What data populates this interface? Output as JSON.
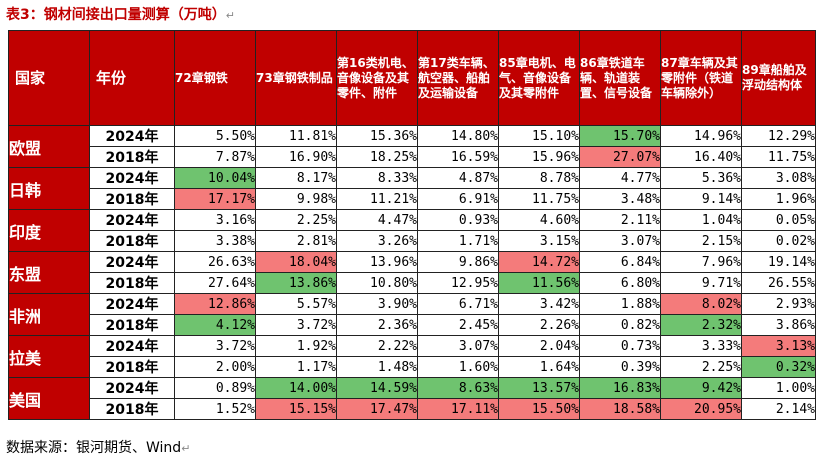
{
  "title": "表3：钢材间接出口量测算（万吨）",
  "colors": {
    "header_bg": "#c00000",
    "high": "#6fc36f",
    "low": "#f47b7b"
  },
  "table": {
    "headers": [
      "国家",
      "年份",
      "72章钢铁",
      "73章钢铁制品",
      "第16类机电、音像设备及其零件、附件",
      "第17类车辆、航空器、船舶及运输设备",
      "85章电机、电气、音像设备及其零附件",
      "86章铁道车辆、轨道装置、信号设备",
      "87章车辆及其零附件（铁道车辆除外）",
      "89章船舶及浮动结构体"
    ],
    "groups": [
      {
        "country": "欧盟",
        "rows": [
          {
            "year": "2024年",
            "cells": [
              {
                "v": "5.50%",
                "h": ""
              },
              {
                "v": "11.81%",
                "h": ""
              },
              {
                "v": "15.36%",
                "h": ""
              },
              {
                "v": "14.80%",
                "h": ""
              },
              {
                "v": "15.10%",
                "h": ""
              },
              {
                "v": "15.70%",
                "h": "green"
              },
              {
                "v": "14.96%",
                "h": ""
              },
              {
                "v": "12.29%",
                "h": ""
              }
            ]
          },
          {
            "year": "2018年",
            "cells": [
              {
                "v": "7.87%",
                "h": ""
              },
              {
                "v": "16.90%",
                "h": ""
              },
              {
                "v": "18.25%",
                "h": ""
              },
              {
                "v": "16.59%",
                "h": ""
              },
              {
                "v": "15.96%",
                "h": ""
              },
              {
                "v": "27.07%",
                "h": "red"
              },
              {
                "v": "16.40%",
                "h": ""
              },
              {
                "v": "11.75%",
                "h": ""
              }
            ]
          }
        ]
      },
      {
        "country": "日韩",
        "rows": [
          {
            "year": "2024年",
            "cells": [
              {
                "v": "10.04%",
                "h": "green"
              },
              {
                "v": "8.17%",
                "h": ""
              },
              {
                "v": "8.33%",
                "h": ""
              },
              {
                "v": "4.87%",
                "h": ""
              },
              {
                "v": "8.78%",
                "h": ""
              },
              {
                "v": "4.77%",
                "h": ""
              },
              {
                "v": "5.36%",
                "h": ""
              },
              {
                "v": "3.08%",
                "h": ""
              }
            ]
          },
          {
            "year": "2018年",
            "cells": [
              {
                "v": "17.17%",
                "h": "red"
              },
              {
                "v": "9.98%",
                "h": ""
              },
              {
                "v": "11.21%",
                "h": ""
              },
              {
                "v": "6.91%",
                "h": ""
              },
              {
                "v": "11.75%",
                "h": ""
              },
              {
                "v": "3.48%",
                "h": ""
              },
              {
                "v": "9.14%",
                "h": ""
              },
              {
                "v": "1.96%",
                "h": ""
              }
            ]
          }
        ]
      },
      {
        "country": "印度",
        "rows": [
          {
            "year": "2024年",
            "cells": [
              {
                "v": "3.16%",
                "h": ""
              },
              {
                "v": "2.25%",
                "h": ""
              },
              {
                "v": "4.47%",
                "h": ""
              },
              {
                "v": "0.93%",
                "h": ""
              },
              {
                "v": "4.60%",
                "h": ""
              },
              {
                "v": "2.11%",
                "h": ""
              },
              {
                "v": "1.04%",
                "h": ""
              },
              {
                "v": "0.05%",
                "h": ""
              }
            ]
          },
          {
            "year": "2018年",
            "cells": [
              {
                "v": "3.38%",
                "h": ""
              },
              {
                "v": "2.81%",
                "h": ""
              },
              {
                "v": "3.26%",
                "h": ""
              },
              {
                "v": "1.71%",
                "h": ""
              },
              {
                "v": "3.15%",
                "h": ""
              },
              {
                "v": "3.07%",
                "h": ""
              },
              {
                "v": "2.15%",
                "h": ""
              },
              {
                "v": "0.02%",
                "h": ""
              }
            ]
          }
        ]
      },
      {
        "country": "东盟",
        "rows": [
          {
            "year": "2024年",
            "cells": [
              {
                "v": "26.63%",
                "h": ""
              },
              {
                "v": "18.04%",
                "h": "red"
              },
              {
                "v": "13.96%",
                "h": ""
              },
              {
                "v": "9.86%",
                "h": ""
              },
              {
                "v": "14.72%",
                "h": "red"
              },
              {
                "v": "6.84%",
                "h": ""
              },
              {
                "v": "7.96%",
                "h": ""
              },
              {
                "v": "19.14%",
                "h": ""
              }
            ]
          },
          {
            "year": "2018年",
            "cells": [
              {
                "v": "27.64%",
                "h": ""
              },
              {
                "v": "13.86%",
                "h": "green"
              },
              {
                "v": "10.80%",
                "h": ""
              },
              {
                "v": "12.95%",
                "h": ""
              },
              {
                "v": "11.56%",
                "h": "green"
              },
              {
                "v": "6.80%",
                "h": ""
              },
              {
                "v": "9.71%",
                "h": ""
              },
              {
                "v": "26.55%",
                "h": ""
              }
            ]
          }
        ]
      },
      {
        "country": "非洲",
        "rows": [
          {
            "year": "2024年",
            "cells": [
              {
                "v": "12.86%",
                "h": "red"
              },
              {
                "v": "5.57%",
                "h": ""
              },
              {
                "v": "3.90%",
                "h": ""
              },
              {
                "v": "6.71%",
                "h": ""
              },
              {
                "v": "3.42%",
                "h": ""
              },
              {
                "v": "1.88%",
                "h": ""
              },
              {
                "v": "8.02%",
                "h": "red"
              },
              {
                "v": "2.93%",
                "h": ""
              }
            ]
          },
          {
            "year": "2018年",
            "cells": [
              {
                "v": "4.12%",
                "h": "green"
              },
              {
                "v": "3.72%",
                "h": ""
              },
              {
                "v": "2.36%",
                "h": ""
              },
              {
                "v": "2.45%",
                "h": ""
              },
              {
                "v": "2.26%",
                "h": ""
              },
              {
                "v": "0.82%",
                "h": ""
              },
              {
                "v": "2.32%",
                "h": "green"
              },
              {
                "v": "3.86%",
                "h": ""
              }
            ]
          }
        ]
      },
      {
        "country": "拉美",
        "rows": [
          {
            "year": "2024年",
            "cells": [
              {
                "v": "3.72%",
                "h": ""
              },
              {
                "v": "1.92%",
                "h": ""
              },
              {
                "v": "2.22%",
                "h": ""
              },
              {
                "v": "3.07%",
                "h": ""
              },
              {
                "v": "2.04%",
                "h": ""
              },
              {
                "v": "0.73%",
                "h": ""
              },
              {
                "v": "3.33%",
                "h": ""
              },
              {
                "v": "3.13%",
                "h": "red"
              }
            ]
          },
          {
            "year": "2018年",
            "cells": [
              {
                "v": "2.00%",
                "h": ""
              },
              {
                "v": "1.17%",
                "h": ""
              },
              {
                "v": "1.48%",
                "h": ""
              },
              {
                "v": "1.60%",
                "h": ""
              },
              {
                "v": "1.64%",
                "h": ""
              },
              {
                "v": "0.39%",
                "h": ""
              },
              {
                "v": "2.25%",
                "h": ""
              },
              {
                "v": "0.32%",
                "h": "green"
              }
            ]
          }
        ]
      },
      {
        "country": "美国",
        "rows": [
          {
            "year": "2024年",
            "cells": [
              {
                "v": "0.89%",
                "h": ""
              },
              {
                "v": "14.00%",
                "h": "green"
              },
              {
                "v": "14.59%",
                "h": "green"
              },
              {
                "v": "8.63%",
                "h": "green"
              },
              {
                "v": "13.57%",
                "h": "green"
              },
              {
                "v": "16.83%",
                "h": "green"
              },
              {
                "v": "9.42%",
                "h": "green"
              },
              {
                "v": "1.00%",
                "h": ""
              }
            ]
          },
          {
            "year": "2018年",
            "cells": [
              {
                "v": "1.52%",
                "h": ""
              },
              {
                "v": "15.15%",
                "h": "red"
              },
              {
                "v": "17.47%",
                "h": "red"
              },
              {
                "v": "17.11%",
                "h": "red"
              },
              {
                "v": "15.50%",
                "h": "red"
              },
              {
                "v": "18.58%",
                "h": "red"
              },
              {
                "v": "20.95%",
                "h": "red"
              },
              {
                "v": "2.14%",
                "h": ""
              }
            ]
          }
        ]
      }
    ]
  },
  "source": "数据来源：银河期货、Wind"
}
